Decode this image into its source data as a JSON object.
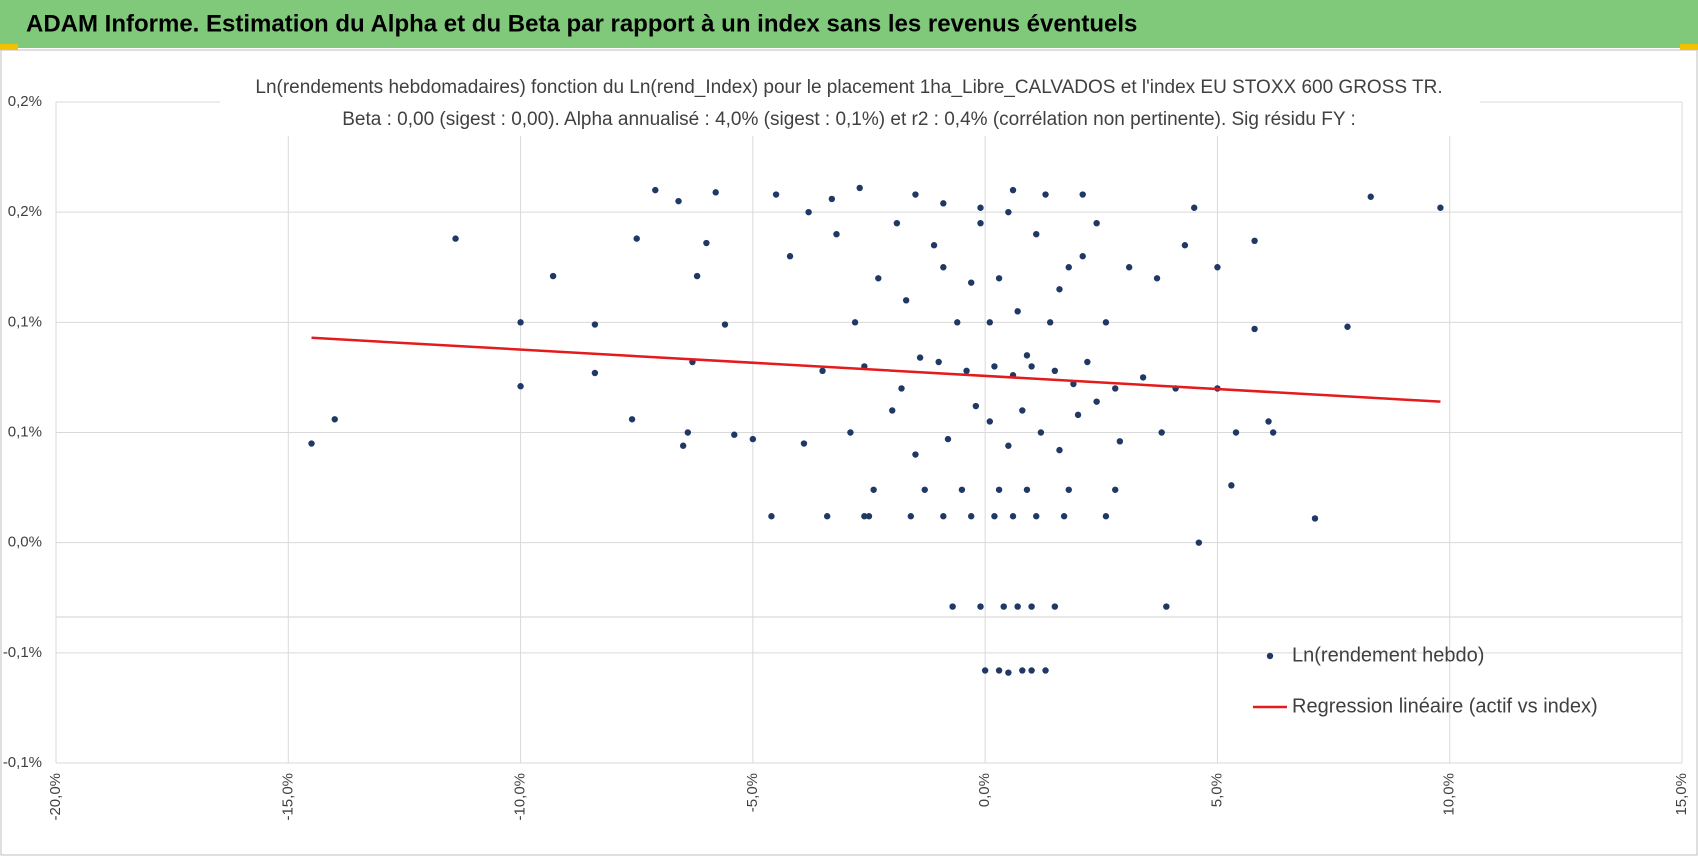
{
  "page_title": "ADAM Informe. Estimation du Alpha et du Beta par rapport à un index sans les revenus éventuels",
  "chart_data": {
    "type": "scatter",
    "title": "Ln(rendements hebdomadaires) fonction du Ln(rend_Index) pour le placement 1ha_Libre_CALVADOS et l'index EU STOXX 600 GROSS TR.",
    "subtitle": "Beta : 0,00 (sigest : 0,00). Alpha annualisé : 4,0% (sigest : 0,1%) et r2 : 0,4% (corrélation non pertinente). Sig résidu FY :",
    "xlim": [
      -20,
      15
    ],
    "xticks": [
      {
        "value": -20,
        "label": "-20,0%"
      },
      {
        "value": -15,
        "label": "-15,0%"
      },
      {
        "value": -10,
        "label": "-10,0%"
      },
      {
        "value": -5,
        "label": "-5,0%"
      },
      {
        "value": 0,
        "label": "0,0%"
      },
      {
        "value": 5,
        "label": "5,0%"
      },
      {
        "value": 10,
        "label": "10,0%"
      },
      {
        "value": 15,
        "label": "15,0%"
      }
    ],
    "ylim": [
      -0.1,
      0.2
    ],
    "yticks": [
      {
        "value": -0.1,
        "label": "-0,1%"
      },
      {
        "value": -0.05,
        "label": "-0,1%"
      },
      {
        "value": 0,
        "label": "0,0%"
      },
      {
        "value": 0.05,
        "label": "0,1%"
      },
      {
        "value": 0.1,
        "label": "0,1%"
      },
      {
        "value": 0.15,
        "label": "0,2%"
      },
      {
        "value": 0.2,
        "label": "0,2%"
      }
    ],
    "grid": true,
    "legend": "lower right",
    "series": [
      {
        "name": "Ln(rendement hebdo)",
        "kind": "points",
        "color": "#203864",
        "x": [
          -14.5,
          -14,
          -11.4,
          -10,
          -10,
          -9.3,
          -8.4,
          -8.4,
          -7.5,
          -7.1,
          -6.6,
          -5.8,
          -6.2,
          -6.0,
          -7.6,
          -6.4,
          -6.5,
          -5.4,
          -5.0,
          -6.3,
          -5.6,
          -4.5,
          -3.8,
          -3.3,
          -2.7,
          -4.6,
          -3.4,
          -2.6,
          8.3,
          9.8,
          7.8,
          5.8,
          5.8,
          7.1,
          4.6,
          3.9,
          5.0,
          6.1,
          6.2,
          5.3,
          5.4,
          4.5,
          5.0,
          0,
          0.3,
          0.5,
          0.8,
          1.0,
          1.3,
          -0.7,
          -0.1,
          0.4,
          0.7,
          1.0,
          1.5,
          -2.5,
          -1.6,
          -0.9,
          -0.3,
          0.2,
          0.6,
          1.1,
          1.7,
          2.6,
          -2.4,
          -1.3,
          -0.5,
          0.3,
          0.9,
          1.8,
          2.8,
          -3.9,
          -2.9,
          -1.5,
          -0.8,
          0.1,
          0.5,
          1.2,
          2.0,
          2.9,
          3.8,
          -2.0,
          -0.2,
          0.8,
          1.6,
          2.4,
          -3.5,
          -2.6,
          -1.8,
          -1,
          -0.4,
          0.2,
          0.6,
          1.0,
          1.5,
          2.2,
          2.8,
          3.4,
          4.1,
          -1.4,
          0.9,
          1.9,
          -4.2,
          -3.2,
          -2.3,
          -1.7,
          -1.1,
          -0.6,
          -0.1,
          0.3,
          0.7,
          1.1,
          1.6,
          2.1,
          2.6,
          3.1,
          3.7,
          4.3,
          -2.8,
          -0.3,
          0.5,
          1.4,
          2.4,
          -1.9,
          -0.9,
          0.1,
          1.8,
          -1.5,
          -0.9,
          0.6,
          1.3,
          2.1,
          -0.1
        ],
        "values": [
          0.045,
          0.056,
          0.138,
          0.1,
          0.071,
          0.121,
          0.099,
          0.077,
          0.138,
          0.16,
          0.155,
          0.159,
          0.121,
          0.136,
          0.056,
          0.05,
          0.044,
          0.049,
          0.047,
          0.082,
          0.099,
          0.158,
          0.15,
          0.156,
          0.161,
          0.012,
          0.012,
          0.012,
          0.157,
          0.152,
          0.098,
          0.137,
          0.097,
          0.011,
          0.0,
          -0.029,
          0.125,
          0.055,
          0.05,
          0.026,
          0.05,
          0.152,
          0.07,
          -0.058,
          -0.058,
          -0.059,
          -0.058,
          -0.058,
          -0.058,
          -0.029,
          -0.029,
          -0.029,
          -0.029,
          -0.029,
          -0.029,
          0.012,
          0.012,
          0.012,
          0.012,
          0.012,
          0.012,
          0.012,
          0.012,
          0.012,
          0.024,
          0.024,
          0.024,
          0.024,
          0.024,
          0.024,
          0.024,
          0.045,
          0.05,
          0.04,
          0.047,
          0.055,
          0.044,
          0.05,
          0.058,
          0.046,
          0.05,
          0.06,
          0.062,
          0.06,
          0.042,
          0.064,
          0.078,
          0.08,
          0.07,
          0.082,
          0.078,
          0.08,
          0.076,
          0.08,
          0.078,
          0.082,
          0.07,
          0.075,
          0.07,
          0.084,
          0.085,
          0.072,
          0.13,
          0.14,
          0.12,
          0.11,
          0.135,
          0.1,
          0.145,
          0.12,
          0.105,
          0.14,
          0.115,
          0.13,
          0.1,
          0.125,
          0.12,
          0.135,
          0.1,
          0.118,
          0.15,
          0.1,
          0.145,
          0.145,
          0.125,
          0.1,
          0.125,
          0.158,
          0.154,
          0.16,
          0.158,
          0.158,
          0.152
        ]
      },
      {
        "name": "Regression linéaire (actif vs index)",
        "kind": "line",
        "color": "#e41a1c",
        "x": [
          -14.5,
          9.8
        ],
        "values": [
          0.093,
          0.064
        ]
      }
    ]
  }
}
